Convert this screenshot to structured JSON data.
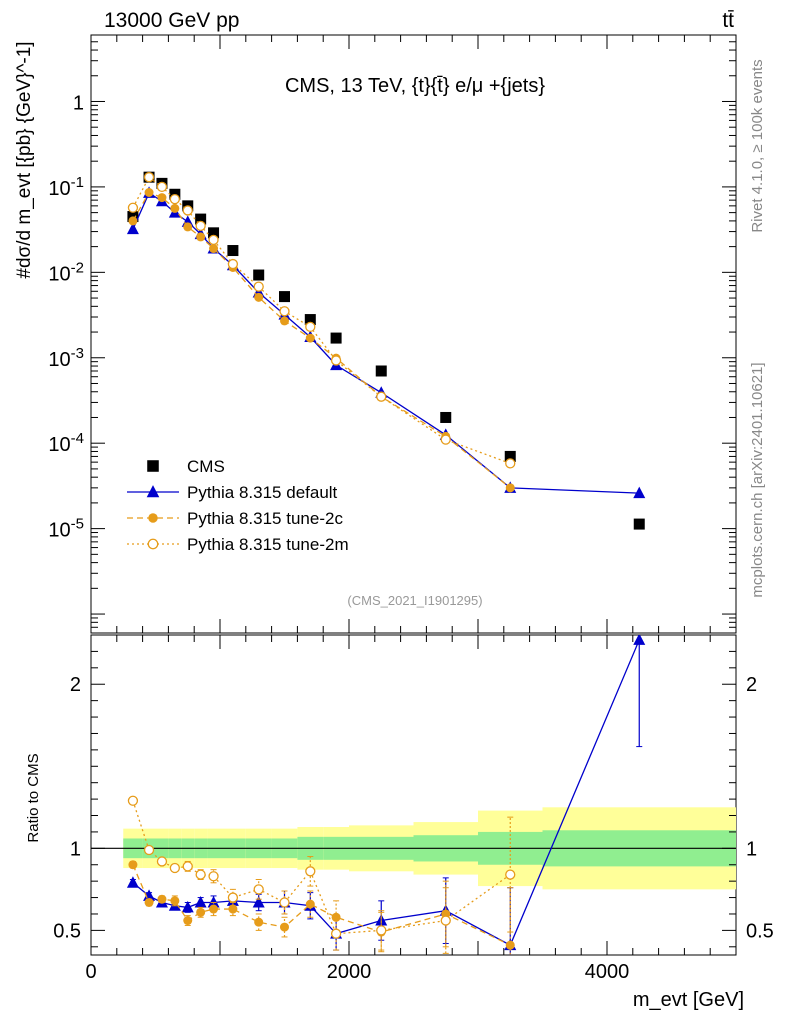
{
  "header": {
    "left": "13000 GeV pp",
    "right": "tt̄"
  },
  "side_labels": {
    "rivet": "Rivet 4.1.0, ≥ 100k events",
    "mcplots": "mcplots.cern.ch [arXiv:2401.10621]"
  },
  "chart_data": {
    "type": "line",
    "title": "CMS, 13 TeV, {t}{t̄} e/μ +{jets}",
    "analysis_id": "(CMS_2021_I1901295)",
    "xlabel": "m_evt [GeV]",
    "xlim": [
      0,
      5000
    ],
    "x_ticks": [
      0,
      2000,
      4000
    ],
    "x_tick_labels": [
      "0",
      "2000",
      "4000"
    ],
    "top_panel": {
      "ylabel": "#dσ/d m_evt [{pb} {GeV}^-1]",
      "yscale": "log",
      "ylim": [
        6e-07,
        6
      ],
      "y_ticks": [
        1e-05,
        0.0001,
        0.001,
        0.01,
        0.1,
        1
      ],
      "y_tick_labels": [
        "10^-5",
        "10^-4",
        "10^-3",
        "10^-2",
        "10^-1",
        "1"
      ]
    },
    "ratio_panel": {
      "ylabel": "Ratio to CMS",
      "ylim": [
        0.35,
        2.3
      ],
      "y_ticks": [
        0.5,
        1,
        2
      ],
      "y_tick_labels": [
        "0.5",
        "1",
        "2"
      ]
    },
    "bins": [
      [
        250,
        400
      ],
      [
        400,
        500
      ],
      [
        500,
        600
      ],
      [
        600,
        700
      ],
      [
        700,
        800
      ],
      [
        800,
        900
      ],
      [
        900,
        1000
      ],
      [
        1000,
        1200
      ],
      [
        1200,
        1400
      ],
      [
        1400,
        1600
      ],
      [
        1600,
        1800
      ],
      [
        1800,
        2000
      ],
      [
        2000,
        2500
      ],
      [
        2500,
        3000
      ],
      [
        3000,
        3500
      ],
      [
        3500,
        5000
      ]
    ],
    "ratio_band_inner": [
      0.06,
      0.06,
      0.06,
      0.06,
      0.06,
      0.06,
      0.06,
      0.06,
      0.06,
      0.06,
      0.07,
      0.07,
      0.07,
      0.08,
      0.1,
      0.11
    ],
    "ratio_band_outer": [
      0.12,
      0.12,
      0.12,
      0.12,
      0.12,
      0.12,
      0.12,
      0.12,
      0.12,
      0.12,
      0.13,
      0.13,
      0.14,
      0.16,
      0.23,
      0.25
    ],
    "legend_position": "lower-left",
    "series": [
      {
        "name": "CMS",
        "color": "#000000",
        "marker": "square",
        "line": "none",
        "x": [
          325,
          450,
          550,
          650,
          750,
          850,
          950,
          1100,
          1300,
          1500,
          1700,
          1900,
          2250,
          2750,
          3250,
          4250
        ],
        "y": [
          0.045,
          0.13,
          0.11,
          0.082,
          0.06,
          0.042,
          0.029,
          0.018,
          0.0093,
          0.0052,
          0.0028,
          0.0017,
          0.0007,
          0.0002,
          7e-05,
          1.13e-05
        ]
      },
      {
        "name": "Pythia 8.315 default",
        "color": "#0000cc",
        "marker": "triangle",
        "line": "solid",
        "x": [
          325,
          450,
          550,
          650,
          750,
          850,
          950,
          1100,
          1300,
          1500,
          1700,
          1900,
          2250,
          2750,
          3250,
          4250
        ],
        "y": [
          0.032,
          0.085,
          0.068,
          0.05,
          0.039,
          0.028,
          0.019,
          0.0121,
          0.0058,
          0.0032,
          0.00175,
          0.00082,
          0.00039,
          0.000125,
          3e-05,
          2.6e-05
        ],
        "ratio": [
          0.79,
          0.71,
          0.67,
          0.65,
          0.64,
          0.67,
          0.67,
          0.68,
          0.67,
          0.67,
          0.65,
          0.48,
          0.56,
          0.62,
          0.41,
          2.27
        ],
        "ratio_err": [
          0.02,
          0.02,
          0.02,
          0.02,
          0.03,
          0.03,
          0.04,
          0.04,
          0.05,
          0.07,
          0.08,
          0.1,
          0.12,
          0.2,
          0.35,
          0.65
        ]
      },
      {
        "name": "Pythia 8.315 tune-2c",
        "color": "#e69c1a",
        "marker": "circle",
        "line": "dashed",
        "x": [
          325,
          450,
          550,
          650,
          750,
          850,
          950,
          1100,
          1300,
          1500,
          1700,
          1900,
          2250,
          2750,
          3250
        ],
        "y": [
          0.04,
          0.086,
          0.075,
          0.056,
          0.034,
          0.026,
          0.019,
          0.0114,
          0.0051,
          0.0027,
          0.0017,
          0.00099,
          0.00035,
          0.00012,
          3e-05
        ],
        "ratio": [
          0.9,
          0.67,
          0.69,
          0.68,
          0.56,
          0.61,
          0.63,
          0.63,
          0.55,
          0.52,
          0.66,
          0.58,
          0.49,
          0.6,
          0.41
        ],
        "ratio_err": [
          0.02,
          0.02,
          0.02,
          0.03,
          0.03,
          0.03,
          0.04,
          0.04,
          0.05,
          0.06,
          0.08,
          0.1,
          0.12,
          0.2,
          0.35
        ]
      },
      {
        "name": "Pythia 8.315 tune-2m",
        "color": "#e69c1a",
        "marker": "open-circle",
        "line": "dotted",
        "x": [
          325,
          450,
          550,
          650,
          750,
          850,
          950,
          1100,
          1300,
          1500,
          1700,
          1900,
          2250,
          2750,
          3250
        ],
        "y": [
          0.057,
          0.13,
          0.1,
          0.072,
          0.053,
          0.035,
          0.024,
          0.0125,
          0.0068,
          0.0035,
          0.0023,
          0.00093,
          0.00035,
          0.00011,
          5.8e-05
        ],
        "ratio": [
          1.29,
          0.99,
          0.92,
          0.88,
          0.89,
          0.84,
          0.83,
          0.7,
          0.75,
          0.67,
          0.86,
          0.48,
          0.5,
          0.56,
          0.84
        ],
        "ratio_err": [
          0.02,
          0.02,
          0.02,
          0.02,
          0.03,
          0.03,
          0.04,
          0.05,
          0.06,
          0.07,
          0.09,
          0.1,
          0.12,
          0.2,
          0.35
        ]
      }
    ]
  }
}
